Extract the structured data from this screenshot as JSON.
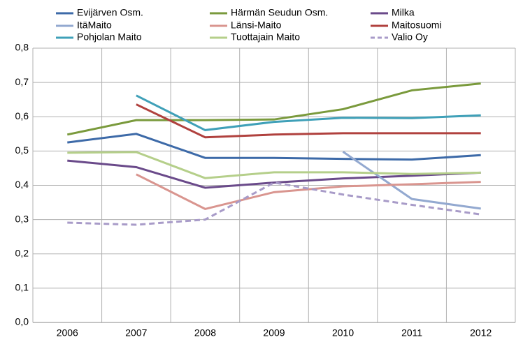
{
  "chart_data": {
    "type": "line",
    "categories": [
      "2006",
      "2007",
      "2008",
      "2009",
      "2010",
      "2011",
      "2012"
    ],
    "ylim": [
      0,
      0.8
    ],
    "yticks": [
      {
        "value": 0,
        "label": "0,0"
      },
      {
        "value": 0.1,
        "label": "0,1"
      },
      {
        "value": 0.2,
        "label": "0,2"
      },
      {
        "value": 0.3,
        "label": "0,3"
      },
      {
        "value": 0.4,
        "label": "0,4"
      },
      {
        "value": 0.5,
        "label": "0,5"
      },
      {
        "value": 0.6,
        "label": "0,6"
      },
      {
        "value": 0.7,
        "label": "0,7"
      },
      {
        "value": 0.8,
        "label": "0,8"
      }
    ],
    "grid": true,
    "legend": "top",
    "series": [
      {
        "name": "Evijärven Osm.",
        "color": "#3d6aa8",
        "values": [
          0.525,
          0.55,
          0.48,
          0.48,
          0.477,
          0.475,
          0.488
        ]
      },
      {
        "name": "Härmän Seudun Osm.",
        "color": "#7a9a3c",
        "values": [
          0.548,
          0.59,
          0.59,
          0.592,
          0.622,
          0.677,
          0.697
        ]
      },
      {
        "name": "Milka",
        "color": "#6a4a8a",
        "values": [
          0.472,
          0.453,
          0.393,
          0.408,
          0.42,
          0.428,
          0.437
        ]
      },
      {
        "name": "ItäMaito",
        "color": "#93a9d0",
        "values": [
          null,
          null,
          null,
          null,
          0.498,
          0.36,
          0.332
        ]
      },
      {
        "name": "Länsi-Maito",
        "color": "#d9958f",
        "values": [
          null,
          0.432,
          0.331,
          0.38,
          0.397,
          0.403,
          0.41
        ]
      },
      {
        "name": "Maitosuomi",
        "color": "#b0413e",
        "values": [
          null,
          0.636,
          0.54,
          0.548,
          0.552,
          0.552,
          0.552
        ]
      },
      {
        "name": "Pohjolan Maito",
        "color": "#3fa0b8",
        "values": [
          null,
          0.662,
          0.561,
          0.585,
          0.597,
          0.596,
          0.604
        ]
      },
      {
        "name": "Tuottajain Maito",
        "color": "#b5cf8a",
        "values": [
          0.495,
          0.497,
          0.421,
          0.438,
          0.438,
          0.433,
          0.437
        ]
      },
      {
        "name": "Valio Oy",
        "color": "#a89bc8",
        "style": "dashed",
        "values": [
          0.291,
          0.285,
          0.3,
          0.408,
          0.373,
          0.343,
          0.315
        ]
      }
    ]
  }
}
